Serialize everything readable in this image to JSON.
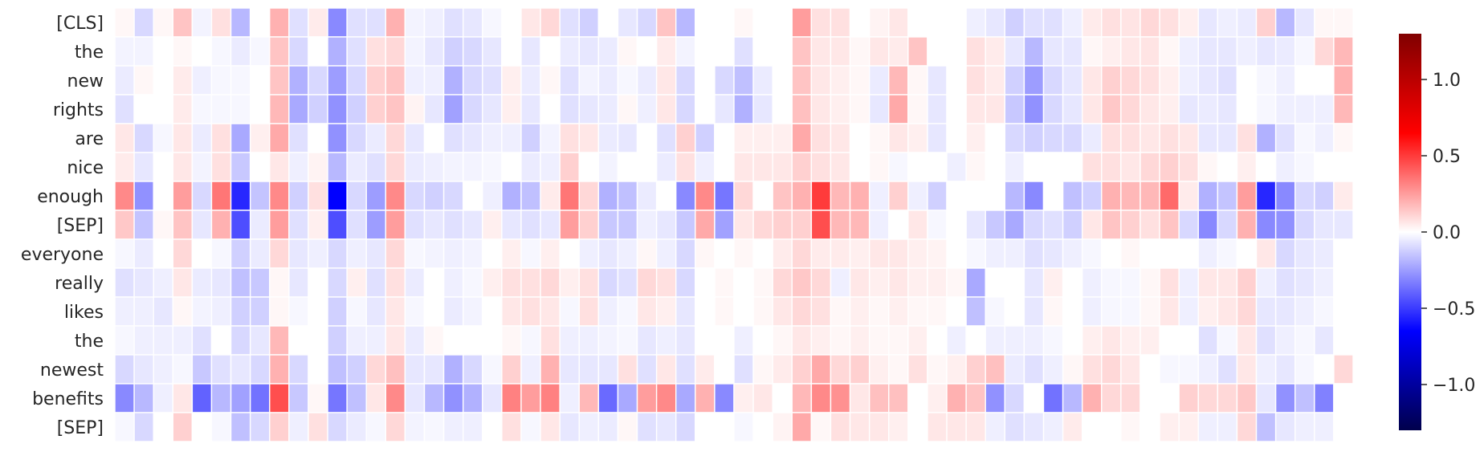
{
  "chart_data": {
    "type": "heatmap",
    "title": "",
    "xlabel": "",
    "ylabel": "",
    "row_labels": [
      "[CLS]",
      "the",
      "new",
      "rights",
      "are",
      "nice",
      "enough",
      "[SEP]",
      "everyone",
      "really",
      "likes",
      "the",
      "newest",
      "benefits",
      "[SEP]"
    ],
    "columns": 64,
    "x_tick_labels": [],
    "colormap": "seismic",
    "colorbar": {
      "vmin": -1.3,
      "vmax": 1.3,
      "ticks": [
        1.0,
        0.5,
        0.0,
        -0.5,
        -1.0
      ],
      "tick_labels": [
        "1.0",
        "0.5",
        "0.0",
        "−0.5",
        "−1.0"
      ]
    },
    "grid_lines": "white",
    "values": [
      [
        0.02,
        -0.1,
        0.02,
        0.15,
        -0.03,
        0.08,
        -0.18,
        0.0,
        0.2,
        -0.08,
        0.05,
        -0.3,
        -0.08,
        -0.08,
        0.2,
        -0.03,
        -0.04,
        -0.08,
        -0.06,
        -0.02,
        0.0,
        0.06,
        0.1,
        -0.08,
        -0.12,
        0.0,
        -0.06,
        -0.1,
        0.15,
        -0.18,
        0.0,
        0.0,
        0.02,
        0.0,
        0.0,
        0.25,
        0.08,
        0.08,
        0.0,
        0.03,
        0.06,
        0.0,
        0.0,
        0.0,
        -0.04,
        -0.06,
        -0.12,
        -0.08,
        -0.08,
        -0.04,
        0.05,
        0.08,
        0.07,
        0.1,
        0.08,
        0.04,
        -0.06,
        -0.04,
        -0.05,
        0.12,
        -0.18,
        -0.06,
        0.02,
        0.02
      ],
      [
        -0.03,
        -0.03,
        0.0,
        0.02,
        0.0,
        -0.02,
        -0.05,
        -0.02,
        0.15,
        -0.1,
        0.0,
        -0.2,
        -0.08,
        0.08,
        0.1,
        -0.03,
        -0.06,
        -0.12,
        -0.1,
        -0.06,
        0.0,
        -0.06,
        0.0,
        -0.05,
        -0.06,
        -0.05,
        0.02,
        0.0,
        0.05,
        -0.03,
        0.0,
        0.0,
        -0.08,
        0.0,
        0.0,
        0.15,
        0.06,
        0.06,
        0.02,
        0.06,
        0.05,
        0.15,
        0.0,
        0.0,
        0.08,
        0.05,
        -0.06,
        -0.18,
        -0.06,
        -0.06,
        0.02,
        0.04,
        0.06,
        0.07,
        0.02,
        -0.04,
        -0.06,
        -0.06,
        -0.04,
        -0.06,
        -0.05,
        -0.02,
        0.1,
        0.18
      ],
      [
        -0.05,
        0.02,
        0.0,
        0.05,
        -0.04,
        -0.02,
        -0.02,
        0.0,
        0.15,
        -0.2,
        -0.1,
        -0.25,
        -0.1,
        0.12,
        0.15,
        -0.04,
        -0.04,
        -0.2,
        -0.1,
        -0.08,
        0.04,
        -0.05,
        0.02,
        -0.08,
        -0.03,
        -0.05,
        -0.02,
        -0.05,
        0.06,
        -0.1,
        0.0,
        -0.1,
        -0.16,
        -0.05,
        0.0,
        0.15,
        0.06,
        0.04,
        0.02,
        -0.05,
        0.18,
        0.02,
        -0.06,
        0.0,
        0.08,
        0.05,
        -0.12,
        -0.25,
        -0.1,
        -0.06,
        0.06,
        0.12,
        0.1,
        0.08,
        0.04,
        -0.04,
        -0.06,
        -0.08,
        0.0,
        -0.02,
        -0.04,
        0.0,
        0.0,
        0.2
      ],
      [
        -0.08,
        0.0,
        0.0,
        0.05,
        -0.02,
        -0.02,
        -0.02,
        0.0,
        0.18,
        -0.22,
        -0.12,
        -0.28,
        -0.12,
        0.12,
        0.15,
        0.03,
        -0.06,
        -0.24,
        -0.1,
        -0.06,
        0.04,
        -0.06,
        0.0,
        -0.08,
        -0.06,
        -0.05,
        0.02,
        -0.04,
        0.06,
        -0.1,
        0.0,
        -0.06,
        -0.2,
        -0.06,
        0.0,
        0.16,
        0.06,
        0.04,
        0.02,
        -0.06,
        0.22,
        0.02,
        -0.06,
        0.0,
        0.06,
        0.06,
        -0.14,
        -0.28,
        -0.1,
        -0.06,
        0.06,
        0.14,
        0.1,
        0.06,
        0.04,
        -0.06,
        -0.05,
        -0.06,
        0.0,
        -0.02,
        -0.04,
        -0.04,
        -0.04,
        0.18
      ],
      [
        0.06,
        -0.1,
        -0.02,
        0.06,
        -0.05,
        0.08,
        -0.22,
        0.04,
        0.22,
        -0.08,
        0.0,
        -0.28,
        -0.1,
        -0.05,
        0.1,
        -0.06,
        0.0,
        -0.08,
        -0.06,
        -0.04,
        -0.04,
        -0.12,
        -0.03,
        0.08,
        0.06,
        -0.05,
        -0.06,
        0.0,
        -0.08,
        0.12,
        -0.12,
        0.0,
        0.04,
        0.04,
        0.04,
        0.22,
        0.08,
        0.06,
        0.0,
        0.02,
        0.06,
        0.04,
        -0.06,
        0.0,
        0.04,
        0.0,
        -0.1,
        -0.12,
        -0.1,
        -0.1,
        -0.05,
        0.08,
        0.08,
        0.06,
        0.08,
        0.06,
        -0.06,
        -0.06,
        0.08,
        -0.2,
        -0.08,
        -0.02,
        -0.04,
        0.02
      ],
      [
        0.05,
        -0.06,
        0.0,
        0.06,
        -0.03,
        0.08,
        -0.14,
        0.0,
        0.06,
        -0.04,
        0.03,
        -0.18,
        -0.05,
        -0.08,
        0.1,
        -0.05,
        -0.04,
        -0.03,
        -0.03,
        -0.02,
        0.0,
        -0.05,
        -0.04,
        0.12,
        0.0,
        -0.03,
        0.0,
        0.0,
        -0.05,
        0.08,
        -0.04,
        0.0,
        0.06,
        0.06,
        0.06,
        0.12,
        0.08,
        0.06,
        0.0,
        0.02,
        -0.02,
        0.0,
        0.0,
        -0.04,
        0.02,
        0.0,
        -0.04,
        0.0,
        0.0,
        0.0,
        0.08,
        0.08,
        0.06,
        0.1,
        0.12,
        0.08,
        0.02,
        0.0,
        0.04,
        0.0,
        -0.04,
        -0.02,
        0.0,
        0.0
      ],
      [
        0.3,
        -0.28,
        0.0,
        0.25,
        -0.1,
        0.35,
        -0.55,
        -0.15,
        0.3,
        -0.12,
        0.08,
        -0.65,
        -0.1,
        -0.25,
        0.3,
        -0.1,
        -0.12,
        -0.1,
        0.0,
        -0.04,
        -0.2,
        -0.16,
        0.05,
        0.35,
        0.1,
        -0.2,
        -0.16,
        -0.05,
        0.0,
        -0.3,
        0.3,
        -0.35,
        0.1,
        0.0,
        0.15,
        0.2,
        0.5,
        0.18,
        0.2,
        -0.04,
        0.12,
        -0.04,
        -0.12,
        0.0,
        0.0,
        0.0,
        -0.18,
        -0.3,
        0.0,
        -0.16,
        -0.12,
        0.2,
        0.18,
        0.18,
        0.38,
        0.05,
        -0.2,
        -0.15,
        0.25,
        -0.55,
        -0.3,
        -0.1,
        -0.12,
        0.05
      ],
      [
        0.14,
        -0.15,
        0.02,
        0.15,
        -0.06,
        0.2,
        -0.45,
        -0.05,
        0.25,
        -0.08,
        0.04,
        -0.45,
        -0.08,
        -0.25,
        0.25,
        -0.08,
        -0.06,
        -0.08,
        -0.06,
        0.04,
        -0.06,
        -0.08,
        -0.06,
        0.25,
        0.12,
        -0.14,
        -0.14,
        -0.04,
        -0.06,
        -0.14,
        0.22,
        -0.24,
        0.06,
        0.1,
        0.12,
        0.12,
        0.45,
        0.18,
        0.18,
        -0.04,
        0.0,
        0.06,
        -0.02,
        0.0,
        -0.06,
        -0.14,
        -0.22,
        -0.1,
        -0.08,
        -0.12,
        0.06,
        0.15,
        0.12,
        0.08,
        0.15,
        -0.1,
        -0.3,
        -0.1,
        0.2,
        -0.3,
        -0.28,
        -0.1,
        -0.06,
        -0.06
      ],
      [
        -0.02,
        -0.05,
        0.0,
        0.1,
        0.0,
        -0.02,
        -0.12,
        -0.05,
        0.1,
        -0.06,
        -0.04,
        -0.1,
        -0.04,
        -0.06,
        0.1,
        -0.02,
        -0.03,
        -0.04,
        -0.03,
        0.0,
        0.04,
        -0.02,
        0.04,
        0.0,
        -0.04,
        -0.06,
        -0.04,
        0.02,
        -0.04,
        -0.1,
        0.02,
        0.0,
        0.02,
        0.0,
        0.05,
        0.1,
        0.05,
        0.05,
        0.04,
        0.06,
        0.06,
        0.04,
        0.03,
        0.0,
        -0.02,
        -0.04,
        -0.04,
        -0.08,
        -0.06,
        -0.04,
        -0.02,
        0.0,
        0.02,
        0.0,
        0.0,
        0.0,
        -0.04,
        -0.02,
        0.0,
        0.06,
        -0.1,
        -0.06,
        -0.05,
        0.0
      ],
      [
        -0.08,
        -0.06,
        -0.04,
        0.06,
        -0.05,
        -0.06,
        -0.16,
        -0.14,
        0.02,
        -0.06,
        0.0,
        -0.1,
        0.04,
        -0.08,
        0.08,
        -0.05,
        0.0,
        -0.04,
        -0.02,
        0.04,
        0.08,
        0.08,
        0.1,
        0.04,
        0.08,
        -0.1,
        -0.08,
        0.1,
        0.08,
        -0.1,
        0.0,
        0.02,
        0.0,
        0.02,
        0.1,
        0.14,
        0.1,
        -0.04,
        0.06,
        0.04,
        0.06,
        0.04,
        0.04,
        0.02,
        -0.22,
        0.0,
        0.0,
        -0.06,
        0.04,
        0.0,
        -0.04,
        -0.02,
        -0.02,
        0.02,
        0.08,
        -0.04,
        0.06,
        0.06,
        0.12,
        -0.04,
        -0.08,
        -0.06,
        -0.04,
        0.0
      ],
      [
        -0.04,
        -0.04,
        -0.06,
        0.02,
        -0.03,
        -0.04,
        -0.12,
        -0.12,
        0.02,
        -0.02,
        0.0,
        -0.12,
        -0.02,
        -0.06,
        0.06,
        -0.02,
        0.0,
        -0.05,
        -0.03,
        0.0,
        0.06,
        0.08,
        0.06,
        -0.02,
        0.08,
        -0.04,
        -0.02,
        0.06,
        0.04,
        -0.06,
        0.0,
        0.02,
        0.0,
        0.02,
        0.06,
        0.1,
        0.08,
        0.02,
        0.04,
        0.02,
        0.04,
        0.02,
        0.02,
        0.0,
        -0.16,
        -0.02,
        0.0,
        -0.06,
        0.02,
        0.0,
        -0.04,
        -0.02,
        -0.02,
        0.02,
        0.06,
        -0.04,
        0.04,
        0.06,
        0.1,
        -0.06,
        -0.06,
        -0.04,
        -0.02,
        0.0
      ],
      [
        -0.02,
        -0.04,
        -0.04,
        -0.04,
        -0.08,
        0.0,
        -0.1,
        -0.06,
        0.18,
        0.0,
        0.0,
        -0.12,
        -0.04,
        -0.04,
        0.06,
        -0.05,
        0.02,
        0.0,
        0.0,
        0.0,
        0.02,
        -0.02,
        0.08,
        -0.04,
        -0.04,
        -0.03,
        -0.02,
        -0.06,
        -0.04,
        -0.06,
        0.0,
        0.0,
        -0.04,
        0.0,
        0.02,
        0.06,
        0.04,
        0.02,
        0.04,
        0.02,
        0.02,
        0.04,
        0.0,
        -0.04,
        0.0,
        -0.04,
        -0.04,
        -0.04,
        -0.02,
        0.0,
        0.04,
        0.06,
        0.04,
        0.04,
        0.0,
        0.0,
        -0.08,
        -0.02,
        0.06,
        -0.08,
        -0.04,
        -0.02,
        -0.06,
        0.0
      ],
      [
        -0.1,
        -0.06,
        -0.04,
        -0.02,
        -0.14,
        -0.08,
        -0.06,
        -0.1,
        0.2,
        -0.1,
        0.0,
        -0.16,
        -0.12,
        0.1,
        0.16,
        -0.06,
        -0.06,
        -0.2,
        -0.1,
        -0.02,
        0.12,
        -0.04,
        0.2,
        -0.06,
        -0.06,
        -0.06,
        0.08,
        -0.08,
        0.06,
        -0.08,
        0.05,
        0.0,
        -0.08,
        0.02,
        0.05,
        0.12,
        0.22,
        0.1,
        0.12,
        0.04,
        0.02,
        0.08,
        0.02,
        0.04,
        0.12,
        0.16,
        -0.05,
        -0.08,
        -0.04,
        0.02,
        0.08,
        0.1,
        0.06,
        0.0,
        -0.02,
        -0.02,
        -0.04,
        -0.08,
        0.06,
        -0.04,
        -0.06,
        -0.02,
        0.0,
        0.1
      ],
      [
        -0.3,
        -0.18,
        -0.04,
        0.06,
        -0.4,
        -0.18,
        -0.24,
        -0.36,
        0.45,
        -0.14,
        0.02,
        -0.35,
        -0.16,
        0.06,
        0.3,
        -0.06,
        -0.18,
        -0.28,
        -0.2,
        -0.06,
        0.32,
        0.25,
        0.32,
        -0.04,
        0.18,
        -0.38,
        -0.22,
        0.25,
        0.3,
        -0.22,
        0.2,
        -0.3,
        0.04,
        0.06,
        0.0,
        0.18,
        0.3,
        0.28,
        0.06,
        0.16,
        0.16,
        0.0,
        0.04,
        0.2,
        0.15,
        -0.28,
        -0.1,
        0.0,
        -0.36,
        -0.18,
        0.2,
        0.1,
        0.1,
        0.0,
        0.0,
        0.12,
        0.1,
        0.1,
        0.14,
        -0.06,
        -0.28,
        -0.16,
        -0.32,
        0.0
      ],
      [
        -0.02,
        -0.1,
        0.0,
        0.12,
        0.0,
        -0.02,
        -0.16,
        -0.1,
        0.12,
        -0.04,
        0.08,
        -0.1,
        -0.05,
        -0.02,
        0.1,
        -0.03,
        -0.02,
        -0.04,
        -0.04,
        0.0,
        0.08,
        -0.02,
        0.06,
        -0.06,
        -0.04,
        -0.05,
        0.02,
        -0.08,
        -0.06,
        -0.1,
        0.0,
        0.0,
        -0.02,
        0.0,
        0.03,
        0.22,
        0.02,
        0.08,
        0.06,
        0.06,
        0.04,
        0.0,
        0.06,
        0.06,
        0.06,
        -0.04,
        -0.08,
        -0.06,
        -0.04,
        0.05,
        0.0,
        0.0,
        0.02,
        0.0,
        0.04,
        0.04,
        -0.04,
        -0.04,
        0.1,
        -0.16,
        -0.06,
        -0.04,
        -0.04,
        0.0
      ]
    ]
  }
}
